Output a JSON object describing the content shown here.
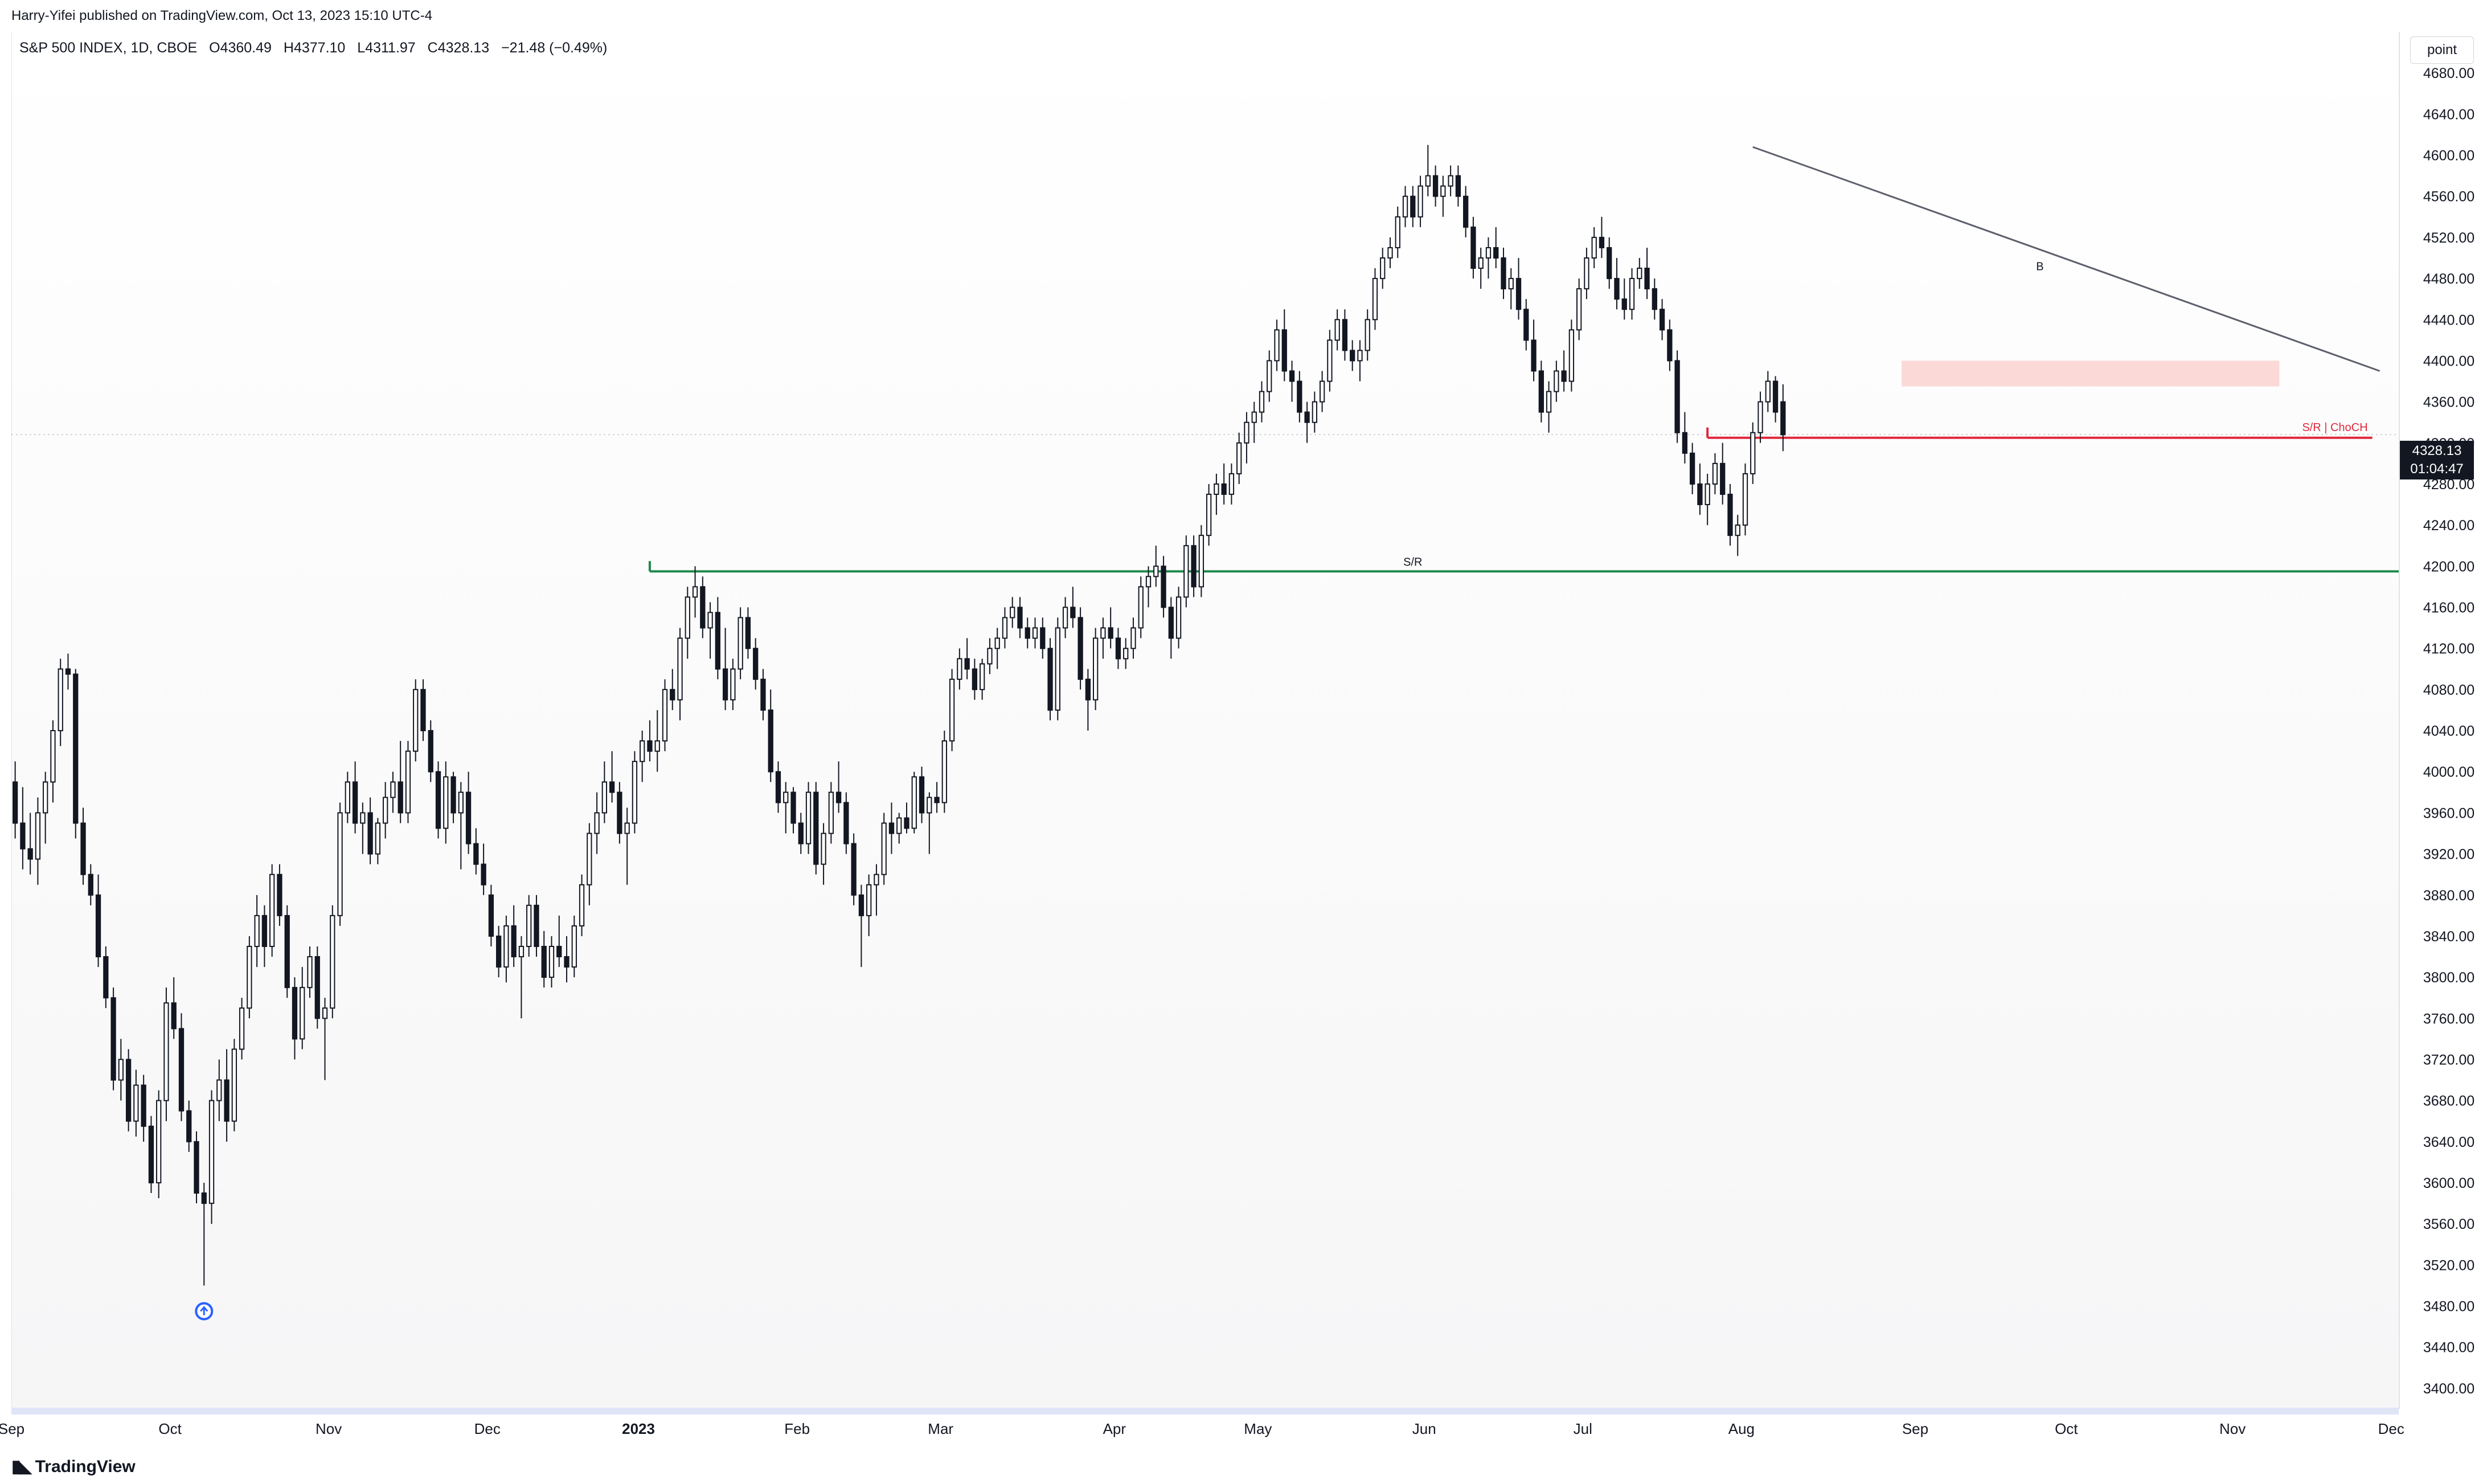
{
  "publisher": "Harry-Yifei published on TradingView.com, Oct 13, 2023 15:10 UTC-4",
  "symbol": {
    "name": "S&P 500 INDEX, 1D, CBOE",
    "open": "O4360.49",
    "high": "H4377.10",
    "low": "L4311.97",
    "close": "C4328.13",
    "change": "−21.48 (−0.49%)"
  },
  "price_unit_label": "point",
  "last_price": "4328.13",
  "countdown": "01:04:47",
  "footer_brand": "TradingView",
  "colors": {
    "up_fill": "#ffffff",
    "down_fill": "#131722",
    "support_line": "#1e8a4c",
    "choch_line": "#e0283c",
    "zone_fill": "#fbd9d7",
    "trendline": "#5d606b",
    "marker": "#2962ff"
  },
  "annotations": {
    "sr_label": "S/R",
    "choch_label": "S/R | ChoCH",
    "trend_label": "B"
  },
  "chart_data": {
    "type": "candlestick",
    "interval": "1D",
    "ylim": [
      3380,
      4720
    ],
    "y_ticks": [
      3400,
      3440,
      3480,
      3520,
      3560,
      3600,
      3640,
      3680,
      3720,
      3760,
      3800,
      3840,
      3880,
      3920,
      3960,
      4000,
      4040,
      4080,
      4120,
      4160,
      4200,
      4240,
      4280,
      4320,
      4360,
      4400,
      4440,
      4480,
      4520,
      4560,
      4600,
      4640,
      4680
    ],
    "x_tick_labels": [
      "Sep",
      "Oct",
      "Nov",
      "Dec",
      "2023",
      "Feb",
      "Mar",
      "Apr",
      "May",
      "Jun",
      "Jul",
      "Aug",
      "Sep",
      "Oct",
      "Nov",
      "Dec"
    ],
    "x_tick_index": [
      0,
      21,
      42,
      63,
      83,
      104,
      123,
      146,
      165,
      187,
      208,
      229,
      252,
      272,
      294,
      315
    ],
    "total_slots": 316,
    "candles": [
      [
        3990,
        4010,
        3935,
        3950
      ],
      [
        3950,
        3985,
        3905,
        3925
      ],
      [
        3925,
        3960,
        3900,
        3915
      ],
      [
        3915,
        3975,
        3890,
        3960
      ],
      [
        3960,
        4000,
        3930,
        3990
      ],
      [
        3990,
        4050,
        3970,
        4040
      ],
      [
        4040,
        4110,
        4025,
        4100
      ],
      [
        4100,
        4115,
        4080,
        4095
      ],
      [
        4095,
        4100,
        3935,
        3950
      ],
      [
        3950,
        3965,
        3890,
        3900
      ],
      [
        3900,
        3910,
        3870,
        3880
      ],
      [
        3880,
        3900,
        3810,
        3820
      ],
      [
        3820,
        3830,
        3770,
        3780
      ],
      [
        3780,
        3790,
        3690,
        3700
      ],
      [
        3700,
        3740,
        3680,
        3720
      ],
      [
        3720,
        3730,
        3650,
        3660
      ],
      [
        3660,
        3710,
        3645,
        3695
      ],
      [
        3695,
        3705,
        3640,
        3655
      ],
      [
        3655,
        3665,
        3590,
        3600
      ],
      [
        3600,
        3690,
        3585,
        3680
      ],
      [
        3680,
        3790,
        3660,
        3775
      ],
      [
        3775,
        3800,
        3740,
        3750
      ],
      [
        3750,
        3765,
        3660,
        3670
      ],
      [
        3670,
        3680,
        3630,
        3640
      ],
      [
        3640,
        3650,
        3580,
        3590
      ],
      [
        3590,
        3600,
        3500,
        3580
      ],
      [
        3580,
        3690,
        3560,
        3680
      ],
      [
        3680,
        3720,
        3660,
        3700
      ],
      [
        3700,
        3730,
        3640,
        3660
      ],
      [
        3660,
        3740,
        3650,
        3730
      ],
      [
        3730,
        3780,
        3720,
        3770
      ],
      [
        3770,
        3840,
        3760,
        3830
      ],
      [
        3830,
        3880,
        3810,
        3860
      ],
      [
        3860,
        3870,
        3810,
        3830
      ],
      [
        3830,
        3910,
        3820,
        3900
      ],
      [
        3900,
        3910,
        3850,
        3860
      ],
      [
        3860,
        3870,
        3780,
        3790
      ],
      [
        3790,
        3800,
        3720,
        3740
      ],
      [
        3740,
        3810,
        3730,
        3790
      ],
      [
        3790,
        3830,
        3780,
        3820
      ],
      [
        3820,
        3830,
        3750,
        3760
      ],
      [
        3760,
        3780,
        3700,
        3770
      ],
      [
        3770,
        3870,
        3760,
        3860
      ],
      [
        3860,
        3970,
        3850,
        3960
      ],
      [
        3960,
        4000,
        3950,
        3990
      ],
      [
        3990,
        4010,
        3940,
        3950
      ],
      [
        3950,
        3970,
        3920,
        3960
      ],
      [
        3960,
        3975,
        3910,
        3920
      ],
      [
        3920,
        3955,
        3910,
        3950
      ],
      [
        3950,
        3990,
        3935,
        3975
      ],
      [
        3975,
        4000,
        3960,
        3990
      ],
      [
        3990,
        4030,
        3950,
        3960
      ],
      [
        3960,
        4030,
        3950,
        4020
      ],
      [
        4020,
        4090,
        4010,
        4080
      ],
      [
        4080,
        4090,
        4030,
        4040
      ],
      [
        4040,
        4050,
        3990,
        4000
      ],
      [
        4000,
        4010,
        3935,
        3945
      ],
      [
        3945,
        4010,
        3930,
        3995
      ],
      [
        3995,
        4000,
        3950,
        3960
      ],
      [
        3960,
        3990,
        3905,
        3980
      ],
      [
        3980,
        4000,
        3920,
        3930
      ],
      [
        3930,
        3945,
        3900,
        3910
      ],
      [
        3910,
        3930,
        3880,
        3890
      ],
      [
        3880,
        3890,
        3830,
        3840
      ],
      [
        3840,
        3850,
        3800,
        3810
      ],
      [
        3810,
        3860,
        3795,
        3850
      ],
      [
        3850,
        3870,
        3810,
        3820
      ],
      [
        3820,
        3840,
        3760,
        3830
      ],
      [
        3830,
        3880,
        3820,
        3870
      ],
      [
        3870,
        3880,
        3820,
        3830
      ],
      [
        3830,
        3845,
        3790,
        3800
      ],
      [
        3800,
        3840,
        3790,
        3830
      ],
      [
        3830,
        3860,
        3810,
        3820
      ],
      [
        3820,
        3840,
        3795,
        3810
      ],
      [
        3810,
        3860,
        3800,
        3850
      ],
      [
        3850,
        3900,
        3840,
        3890
      ],
      [
        3890,
        3950,
        3870,
        3940
      ],
      [
        3940,
        3980,
        3920,
        3960
      ],
      [
        3960,
        4010,
        3950,
        3990
      ],
      [
        3990,
        4020,
        3970,
        3980
      ],
      [
        3980,
        3990,
        3930,
        3940
      ],
      [
        3940,
        3965,
        3890,
        3950
      ],
      [
        3950,
        4020,
        3940,
        4010
      ],
      [
        4010,
        4040,
        3990,
        4030
      ],
      [
        4030,
        4050,
        4010,
        4020
      ],
      [
        4020,
        4060,
        4000,
        4030
      ],
      [
        4030,
        4090,
        4020,
        4080
      ],
      [
        4080,
        4100,
        4060,
        4070
      ],
      [
        4070,
        4140,
        4050,
        4130
      ],
      [
        4130,
        4180,
        4110,
        4170
      ],
      [
        4170,
        4200,
        4150,
        4180
      ],
      [
        4180,
        4190,
        4130,
        4140
      ],
      [
        4140,
        4165,
        4110,
        4155
      ],
      [
        4155,
        4170,
        4090,
        4100
      ],
      [
        4100,
        4140,
        4060,
        4070
      ],
      [
        4070,
        4110,
        4060,
        4100
      ],
      [
        4100,
        4160,
        4090,
        4150
      ],
      [
        4150,
        4160,
        4110,
        4120
      ],
      [
        4120,
        4130,
        4080,
        4090
      ],
      [
        4090,
        4100,
        4050,
        4060
      ],
      [
        4060,
        4080,
        3990,
        4000
      ],
      [
        4000,
        4010,
        3960,
        3970
      ],
      [
        3970,
        3990,
        3940,
        3980
      ],
      [
        3980,
        3985,
        3940,
        3950
      ],
      [
        3950,
        3960,
        3920,
        3930
      ],
      [
        3930,
        3990,
        3920,
        3980
      ],
      [
        3980,
        3990,
        3900,
        3910
      ],
      [
        3910,
        3950,
        3890,
        3940
      ],
      [
        3940,
        3990,
        3930,
        3980
      ],
      [
        3980,
        4010,
        3960,
        3970
      ],
      [
        3970,
        3980,
        3920,
        3930
      ],
      [
        3930,
        3940,
        3870,
        3880
      ],
      [
        3880,
        3890,
        3810,
        3860
      ],
      [
        3860,
        3900,
        3840,
        3890
      ],
      [
        3890,
        3910,
        3860,
        3900
      ],
      [
        3900,
        3960,
        3890,
        3950
      ],
      [
        3950,
        3970,
        3920,
        3940
      ],
      [
        3940,
        3960,
        3930,
        3955
      ],
      [
        3955,
        3970,
        3940,
        3945
      ],
      [
        3945,
        4000,
        3940,
        3995
      ],
      [
        3995,
        4005,
        3950,
        3960
      ],
      [
        3960,
        3980,
        3920,
        3975
      ],
      [
        3975,
        3990,
        3960,
        3970
      ],
      [
        3970,
        4040,
        3960,
        4030
      ],
      [
        4030,
        4100,
        4020,
        4090
      ],
      [
        4090,
        4120,
        4080,
        4110
      ],
      [
        4110,
        4130,
        4090,
        4100
      ],
      [
        4100,
        4110,
        4070,
        4080
      ],
      [
        4080,
        4110,
        4070,
        4105
      ],
      [
        4105,
        4130,
        4095,
        4120
      ],
      [
        4120,
        4140,
        4100,
        4130
      ],
      [
        4130,
        4160,
        4120,
        4150
      ],
      [
        4150,
        4170,
        4140,
        4160
      ],
      [
        4160,
        4170,
        4130,
        4140
      ],
      [
        4140,
        4150,
        4120,
        4130
      ],
      [
        4130,
        4150,
        4120,
        4140
      ],
      [
        4140,
        4150,
        4110,
        4120
      ],
      [
        4120,
        4130,
        4050,
        4060
      ],
      [
        4060,
        4150,
        4050,
        4140
      ],
      [
        4140,
        4170,
        4130,
        4160
      ],
      [
        4160,
        4180,
        4140,
        4150
      ],
      [
        4150,
        4160,
        4080,
        4090
      ],
      [
        4090,
        4100,
        4040,
        4070
      ],
      [
        4070,
        4140,
        4060,
        4130
      ],
      [
        4130,
        4150,
        4110,
        4140
      ],
      [
        4140,
        4160,
        4120,
        4130
      ],
      [
        4130,
        4140,
        4100,
        4110
      ],
      [
        4110,
        4130,
        4100,
        4120
      ],
      [
        4120,
        4150,
        4110,
        4140
      ],
      [
        4140,
        4190,
        4130,
        4180
      ],
      [
        4180,
        4200,
        4160,
        4190
      ],
      [
        4190,
        4220,
        4180,
        4200
      ],
      [
        4200,
        4210,
        4150,
        4160
      ],
      [
        4160,
        4170,
        4110,
        4130
      ],
      [
        4130,
        4180,
        4120,
        4170
      ],
      [
        4170,
        4230,
        4160,
        4220
      ],
      [
        4220,
        4230,
        4170,
        4180
      ],
      [
        4180,
        4240,
        4170,
        4230
      ],
      [
        4230,
        4280,
        4220,
        4270
      ],
      [
        4270,
        4290,
        4250,
        4280
      ],
      [
        4280,
        4300,
        4260,
        4270
      ],
      [
        4270,
        4300,
        4260,
        4290
      ],
      [
        4290,
        4330,
        4280,
        4320
      ],
      [
        4320,
        4350,
        4300,
        4340
      ],
      [
        4340,
        4360,
        4320,
        4350
      ],
      [
        4350,
        4380,
        4340,
        4370
      ],
      [
        4370,
        4410,
        4360,
        4400
      ],
      [
        4400,
        4440,
        4390,
        4430
      ],
      [
        4430,
        4450,
        4380,
        4390
      ],
      [
        4390,
        4400,
        4360,
        4380
      ],
      [
        4380,
        4390,
        4340,
        4350
      ],
      [
        4350,
        4360,
        4320,
        4340
      ],
      [
        4340,
        4370,
        4330,
        4360
      ],
      [
        4360,
        4390,
        4350,
        4380
      ],
      [
        4380,
        4430,
        4370,
        4420
      ],
      [
        4420,
        4450,
        4410,
        4440
      ],
      [
        4440,
        4450,
        4400,
        4410
      ],
      [
        4410,
        4420,
        4390,
        4400
      ],
      [
        4400,
        4420,
        4380,
        4410
      ],
      [
        4410,
        4450,
        4400,
        4440
      ],
      [
        4440,
        4490,
        4430,
        4480
      ],
      [
        4480,
        4510,
        4470,
        4500
      ],
      [
        4500,
        4520,
        4490,
        4510
      ],
      [
        4510,
        4550,
        4500,
        4540
      ],
      [
        4540,
        4570,
        4530,
        4560
      ],
      [
        4560,
        4570,
        4530,
        4540
      ],
      [
        4540,
        4580,
        4530,
        4570
      ],
      [
        4570,
        4610,
        4560,
        4580
      ],
      [
        4580,
        4590,
        4550,
        4560
      ],
      [
        4560,
        4580,
        4540,
        4570
      ],
      [
        4570,
        4590,
        4560,
        4580
      ],
      [
        4580,
        4590,
        4550,
        4560
      ],
      [
        4560,
        4570,
        4520,
        4530
      ],
      [
        4530,
        4540,
        4480,
        4490
      ],
      [
        4490,
        4510,
        4470,
        4500
      ],
      [
        4500,
        4520,
        4480,
        4510
      ],
      [
        4510,
        4530,
        4490,
        4500
      ],
      [
        4500,
        4510,
        4460,
        4470
      ],
      [
        4470,
        4490,
        4450,
        4480
      ],
      [
        4480,
        4500,
        4440,
        4450
      ],
      [
        4450,
        4460,
        4410,
        4420
      ],
      [
        4420,
        4440,
        4380,
        4390
      ],
      [
        4390,
        4400,
        4340,
        4350
      ],
      [
        4350,
        4380,
        4330,
        4370
      ],
      [
        4370,
        4400,
        4360,
        4390
      ],
      [
        4390,
        4410,
        4370,
        4380
      ],
      [
        4380,
        4440,
        4370,
        4430
      ],
      [
        4430,
        4480,
        4420,
        4470
      ],
      [
        4470,
        4510,
        4460,
        4500
      ],
      [
        4500,
        4530,
        4490,
        4520
      ],
      [
        4520,
        4540,
        4500,
        4510
      ],
      [
        4510,
        4520,
        4470,
        4480
      ],
      [
        4480,
        4500,
        4450,
        4460
      ],
      [
        4460,
        4480,
        4440,
        4450
      ],
      [
        4450,
        4490,
        4440,
        4480
      ],
      [
        4480,
        4500,
        4470,
        4490
      ],
      [
        4490,
        4510,
        4460,
        4470
      ],
      [
        4470,
        4480,
        4440,
        4450
      ],
      [
        4450,
        4460,
        4420,
        4430
      ],
      [
        4430,
        4440,
        4390,
        4400
      ],
      [
        4400,
        4410,
        4320,
        4330
      ],
      [
        4330,
        4350,
        4300,
        4310
      ],
      [
        4310,
        4320,
        4270,
        4280
      ],
      [
        4280,
        4300,
        4250,
        4260
      ],
      [
        4260,
        4290,
        4240,
        4280
      ],
      [
        4280,
        4310,
        4270,
        4300
      ],
      [
        4300,
        4320,
        4260,
        4270
      ],
      [
        4270,
        4280,
        4220,
        4230
      ],
      [
        4230,
        4250,
        4210,
        4240
      ],
      [
        4240,
        4300,
        4230,
        4290
      ],
      [
        4290,
        4340,
        4280,
        4330
      ],
      [
        4330,
        4370,
        4320,
        4360
      ],
      [
        4360,
        4390,
        4350,
        4380
      ],
      [
        4380,
        4385,
        4340,
        4350
      ],
      [
        4360,
        4377,
        4312,
        4328
      ]
    ]
  },
  "levels": {
    "sr_price": 4195,
    "choch_price": 4325,
    "zone_low": 4375,
    "zone_high": 4400,
    "trend_start": [
      230,
      4608
    ],
    "trend_end": [
      316,
      4390
    ]
  }
}
